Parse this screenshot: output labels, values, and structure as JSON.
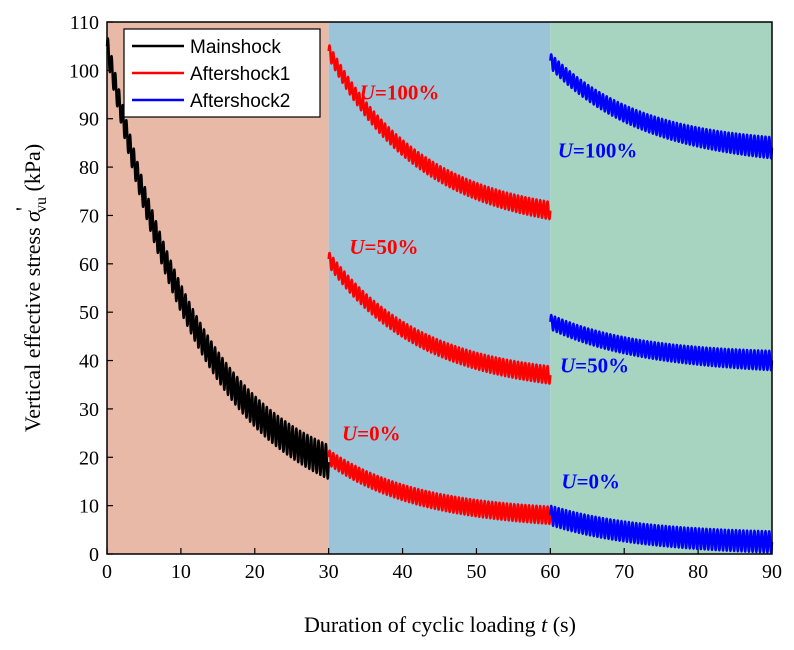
{
  "chart_data": {
    "type": "line",
    "xlabel_prefix": "Duration of cyclic loading ",
    "xlabel_var": "t",
    "xlabel_suffix": " (s)",
    "ylabel_prefix": "Vertical effective stress ",
    "ylabel_symbol": "σ",
    "ylabel_prime": "'",
    "ylabel_subscript": "vu",
    "ylabel_suffix": " (kPa)",
    "xlim": [
      0,
      90
    ],
    "ylim": [
      0,
      110
    ],
    "xticks": [
      "0",
      "10",
      "20",
      "30",
      "40",
      "50",
      "60",
      "70",
      "80",
      "90"
    ],
    "yticks": [
      "0",
      "10",
      "20",
      "30",
      "40",
      "50",
      "60",
      "70",
      "80",
      "90",
      "100",
      "110"
    ],
    "regions": [
      {
        "name": "Mainshock",
        "x": [
          0,
          30
        ],
        "color": "#e8b9a6"
      },
      {
        "name": "Aftershock1",
        "x": [
          30,
          60
        ],
        "color": "#9cc4d8"
      },
      {
        "name": "Aftershock2",
        "x": [
          60,
          90
        ],
        "color": "#a6d4c0"
      }
    ],
    "legend": {
      "position": "top-left",
      "entries": [
        {
          "label": "Mainshock",
          "color": "#000000"
        },
        {
          "label": "Aftershock1",
          "color": "#ff0000"
        },
        {
          "label": "Aftershock2",
          "color": "#0000ff"
        }
      ]
    },
    "series": [
      {
        "name": "Mainshock",
        "color": "#000000",
        "t": [
          0,
          30
        ],
        "start": 105,
        "end": 19,
        "amplitude_start": 2.5,
        "amplitude_end": 3.5,
        "period": 0.5,
        "decay": "exponential"
      },
      {
        "name": "Aftershock1 U=100%",
        "color": "#ff0000",
        "t": [
          30,
          60
        ],
        "start": 104,
        "end": 71,
        "amplitude_start": 1.5,
        "amplitude_end": 1.8,
        "period": 0.5,
        "decay": "exponential"
      },
      {
        "name": "Aftershock1 U=50%",
        "color": "#ff0000",
        "t": [
          30,
          60
        ],
        "start": 61,
        "end": 37,
        "amplitude_start": 1.5,
        "amplitude_end": 1.8,
        "period": 0.5,
        "decay": "exponential"
      },
      {
        "name": "Aftershock1 U=0%",
        "color": "#ff0000",
        "t": [
          30,
          60
        ],
        "start": 20,
        "end": 8,
        "amplitude_start": 1.5,
        "amplitude_end": 1.8,
        "period": 0.5,
        "decay": "exponential"
      },
      {
        "name": "Aftershock2 U=100%",
        "color": "#0000ff",
        "t": [
          60,
          90
        ],
        "start": 102,
        "end": 84,
        "amplitude_start": 1.5,
        "amplitude_end": 2.2,
        "period": 0.5,
        "decay": "exponential"
      },
      {
        "name": "Aftershock2 U=50%",
        "color": "#0000ff",
        "t": [
          60,
          90
        ],
        "start": 48,
        "end": 40,
        "amplitude_start": 1.5,
        "amplitude_end": 2.0,
        "period": 0.5,
        "decay": "exponential"
      },
      {
        "name": "Aftershock2 U=0%",
        "color": "#0000ff",
        "t": [
          60,
          90
        ],
        "start": 8,
        "end": 2.5,
        "amplitude_start": 2.0,
        "amplitude_end": 2.2,
        "period": 0.5,
        "decay": "exponential"
      }
    ],
    "annotations": [
      {
        "var": "U",
        "text": "=100%",
        "color": "#ff0000",
        "x": 34.2,
        "y": 94
      },
      {
        "var": "U",
        "text": "=50%",
        "color": "#ff0000",
        "x": 32.8,
        "y": 62
      },
      {
        "var": "U",
        "text": "=0%",
        "color": "#ff0000",
        "x": 31.8,
        "y": 23.5
      },
      {
        "var": "U",
        "text": "=100%",
        "color": "#0000ff",
        "x": 61.0,
        "y": 82
      },
      {
        "var": "U",
        "text": "=50%",
        "color": "#0000ff",
        "x": 61.3,
        "y": 37.5
      },
      {
        "var": "U",
        "text": "=0%",
        "color": "#0000ff",
        "x": 61.5,
        "y": 13.5
      }
    ]
  }
}
